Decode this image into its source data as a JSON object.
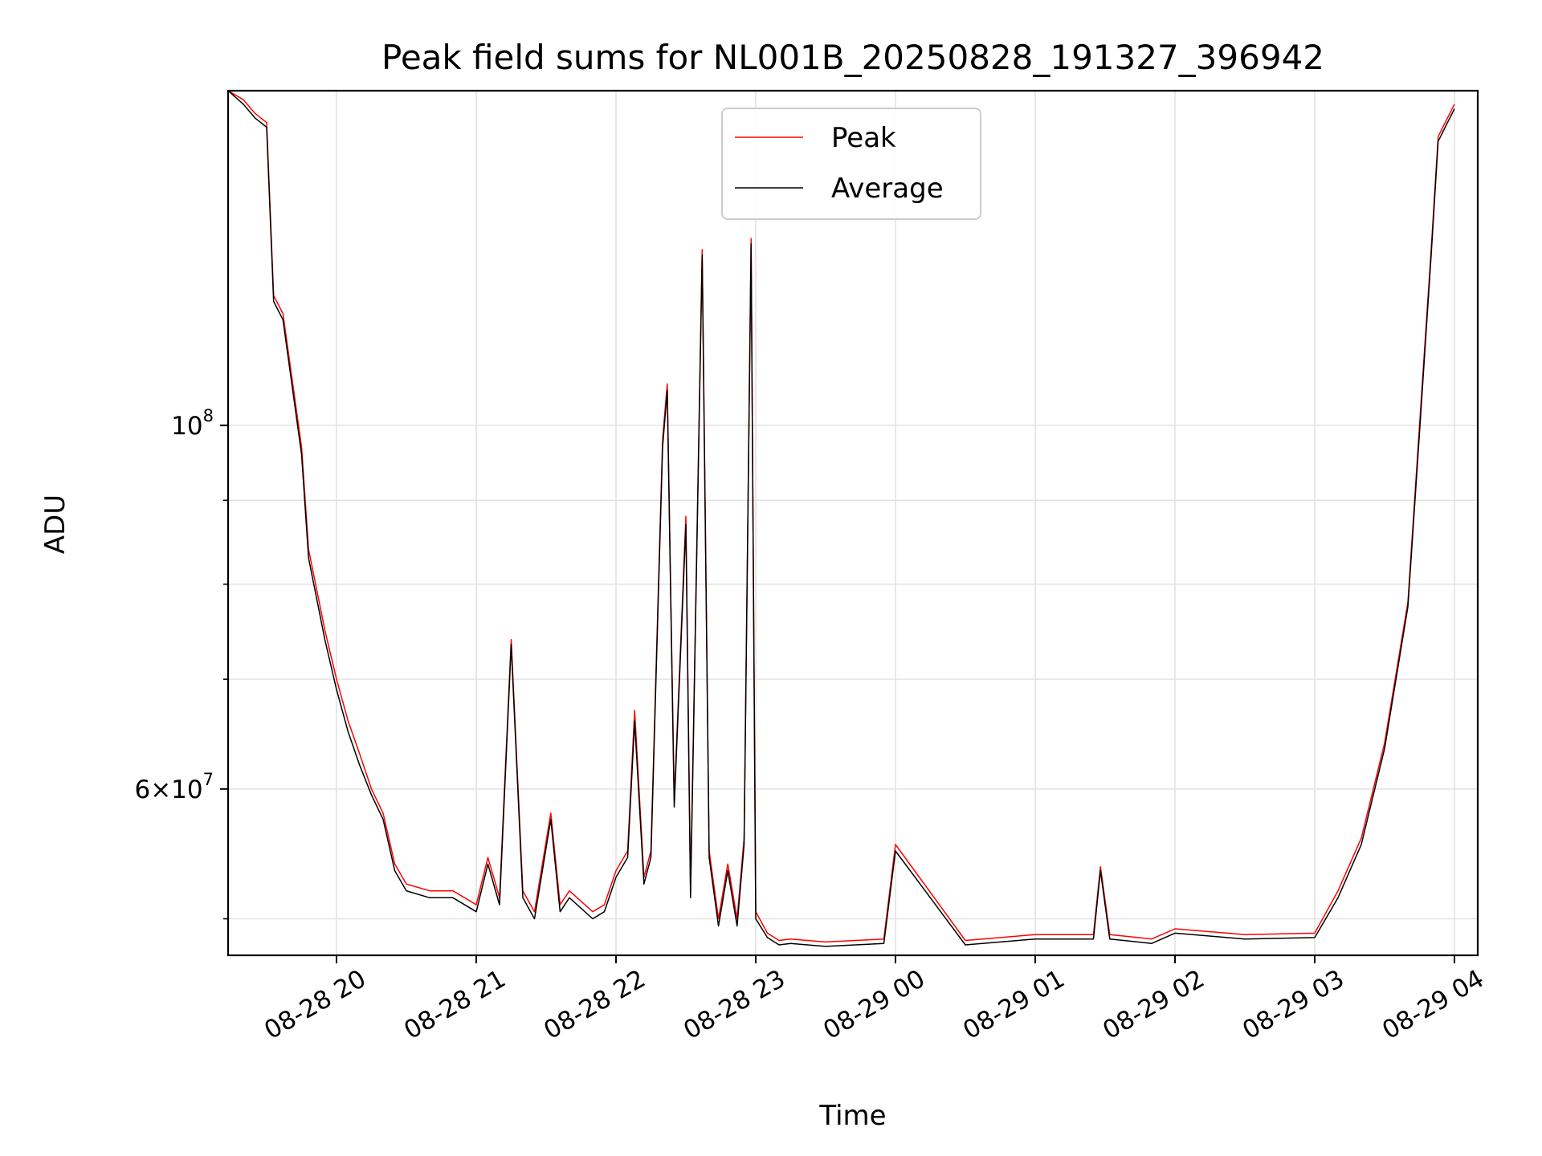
{
  "chart_data": {
    "type": "line",
    "title": "Peak field sums for NL001B_20250828_191327_396942",
    "xlabel": "Time",
    "ylabel": "ADU",
    "yscale": "log",
    "ylim": [
      47500000,
      160000000
    ],
    "xlim": [
      "2025-08-28T19:13:27",
      "2025-08-29T04:00:00"
    ],
    "grid": true,
    "legend_position": "top-center",
    "x_ticks": [
      {
        "value": "2025-08-28T20:00:00",
        "label": "08-28 20"
      },
      {
        "value": "2025-08-28T21:00:00",
        "label": "08-28 21"
      },
      {
        "value": "2025-08-28T22:00:00",
        "label": "08-28 22"
      },
      {
        "value": "2025-08-28T23:00:00",
        "label": "08-28 23"
      },
      {
        "value": "2025-08-29T00:00:00",
        "label": "08-29 00"
      },
      {
        "value": "2025-08-29T01:00:00",
        "label": "08-29 01"
      },
      {
        "value": "2025-08-29T02:00:00",
        "label": "08-29 02"
      },
      {
        "value": "2025-08-29T03:00:00",
        "label": "08-29 03"
      },
      {
        "value": "2025-08-29T04:00:00",
        "label": "08-29 04"
      }
    ],
    "y_major_ticks": [
      {
        "value": 60000000,
        "mantissa": "6",
        "exponent": "7"
      },
      {
        "value": 100000000,
        "mantissa": "",
        "exponent": "8"
      }
    ],
    "y_minor_ticks": [
      50000000,
      70000000,
      80000000,
      90000000
    ],
    "series": [
      {
        "name": "Peak",
        "color": "#ff0000",
        "x": [
          "2025-08-28T19:13:27",
          "2025-08-28T19:20:00",
          "2025-08-28T19:25:00",
          "2025-08-28T19:30:00",
          "2025-08-28T19:33:00",
          "2025-08-28T19:37:00",
          "2025-08-28T19:45:00",
          "2025-08-28T19:48:00",
          "2025-08-28T19:55:00",
          "2025-08-28T20:00:00",
          "2025-08-28T20:05:00",
          "2025-08-28T20:10:00",
          "2025-08-28T20:15:00",
          "2025-08-28T20:20:00",
          "2025-08-28T20:25:00",
          "2025-08-28T20:30:00",
          "2025-08-28T20:40:00",
          "2025-08-28T20:50:00",
          "2025-08-28T21:00:00",
          "2025-08-28T21:05:00",
          "2025-08-28T21:10:00",
          "2025-08-28T21:15:00",
          "2025-08-28T21:20:00",
          "2025-08-28T21:25:00",
          "2025-08-28T21:32:00",
          "2025-08-28T21:36:00",
          "2025-08-28T21:40:00",
          "2025-08-28T21:50:00",
          "2025-08-28T21:55:00",
          "2025-08-28T22:00:00",
          "2025-08-28T22:05:00",
          "2025-08-28T22:08:00",
          "2025-08-28T22:12:00",
          "2025-08-28T22:15:00",
          "2025-08-28T22:20:00",
          "2025-08-28T22:22:00",
          "2025-08-28T22:25:00",
          "2025-08-28T22:30:00",
          "2025-08-28T22:32:00",
          "2025-08-28T22:37:00",
          "2025-08-28T22:40:00",
          "2025-08-28T22:44:00",
          "2025-08-28T22:48:00",
          "2025-08-28T22:52:00",
          "2025-08-28T22:55:00",
          "2025-08-28T22:58:00",
          "2025-08-28T23:00:00",
          "2025-08-28T23:05:00",
          "2025-08-28T23:10:00",
          "2025-08-28T23:15:00",
          "2025-08-28T23:30:00",
          "2025-08-28T23:55:00",
          "2025-08-29T00:00:00",
          "2025-08-29T00:30:00",
          "2025-08-29T01:00:00",
          "2025-08-29T01:25:00",
          "2025-08-29T01:28:00",
          "2025-08-29T01:32:00",
          "2025-08-29T01:50:00",
          "2025-08-29T02:00:00",
          "2025-08-29T02:30:00",
          "2025-08-29T03:00:00",
          "2025-08-29T03:10:00",
          "2025-08-29T03:20:00",
          "2025-08-29T03:30:00",
          "2025-08-29T03:40:00",
          "2025-08-29T03:45:00",
          "2025-08-29T03:50:00",
          "2025-08-29T03:53:00",
          "2025-08-29T03:55:00",
          "2025-08-29T04:00:00"
        ],
        "y": [
          160000000,
          158000000,
          155000000,
          153000000,
          120000000,
          117000000,
          97000000,
          84000000,
          75000000,
          70000000,
          66000000,
          63000000,
          60000000,
          58000000,
          54000000,
          52500000,
          52000000,
          52000000,
          51000000,
          54500000,
          51500000,
          74000000,
          52000000,
          50500000,
          58000000,
          51000000,
          52000000,
          50500000,
          51000000,
          53500000,
          55000000,
          67000000,
          53000000,
          55000000,
          98000000,
          106000000,
          59000000,
          88000000,
          52000000,
          128000000,
          55000000,
          50000000,
          54000000,
          50000000,
          56000000,
          130000000,
          50500000,
          49000000,
          48500000,
          48600000,
          48400000,
          48600000,
          55500000,
          48500000,
          48900000,
          48900000,
          53800000,
          48900000,
          48600000,
          49300000,
          48900000,
          49000000,
          52000000,
          56000000,
          64000000,
          78000000,
          100000000,
          128000000,
          150000000,
          152000000,
          157000000
        ]
      },
      {
        "name": "Average",
        "color": "#000000",
        "x": [
          "2025-08-28T19:13:27",
          "2025-08-28T19:20:00",
          "2025-08-28T19:25:00",
          "2025-08-28T19:30:00",
          "2025-08-28T19:33:00",
          "2025-08-28T19:37:00",
          "2025-08-28T19:45:00",
          "2025-08-28T19:48:00",
          "2025-08-28T19:55:00",
          "2025-08-28T20:00:00",
          "2025-08-28T20:05:00",
          "2025-08-28T20:10:00",
          "2025-08-28T20:15:00",
          "2025-08-28T20:20:00",
          "2025-08-28T20:25:00",
          "2025-08-28T20:30:00",
          "2025-08-28T20:40:00",
          "2025-08-28T20:50:00",
          "2025-08-28T21:00:00",
          "2025-08-28T21:05:00",
          "2025-08-28T21:10:00",
          "2025-08-28T21:15:00",
          "2025-08-28T21:20:00",
          "2025-08-28T21:25:00",
          "2025-08-28T21:32:00",
          "2025-08-28T21:36:00",
          "2025-08-28T21:40:00",
          "2025-08-28T21:50:00",
          "2025-08-28T21:55:00",
          "2025-08-28T22:00:00",
          "2025-08-28T22:05:00",
          "2025-08-28T22:08:00",
          "2025-08-28T22:12:00",
          "2025-08-28T22:15:00",
          "2025-08-28T22:20:00",
          "2025-08-28T22:22:00",
          "2025-08-28T22:25:00",
          "2025-08-28T22:30:00",
          "2025-08-28T22:32:00",
          "2025-08-28T22:37:00",
          "2025-08-28T22:40:00",
          "2025-08-28T22:44:00",
          "2025-08-28T22:48:00",
          "2025-08-28T22:52:00",
          "2025-08-28T22:55:00",
          "2025-08-28T22:58:00",
          "2025-08-28T23:00:00",
          "2025-08-28T23:05:00",
          "2025-08-28T23:10:00",
          "2025-08-28T23:15:00",
          "2025-08-28T23:30:00",
          "2025-08-28T23:55:00",
          "2025-08-29T00:00:00",
          "2025-08-29T00:30:00",
          "2025-08-29T01:00:00",
          "2025-08-29T01:25:00",
          "2025-08-29T01:28:00",
          "2025-08-29T01:32:00",
          "2025-08-29T01:50:00",
          "2025-08-29T02:00:00",
          "2025-08-29T02:30:00",
          "2025-08-29T03:00:00",
          "2025-08-29T03:10:00",
          "2025-08-29T03:20:00",
          "2025-08-29T03:30:00",
          "2025-08-29T03:40:00",
          "2025-08-29T03:45:00",
          "2025-08-29T03:50:00",
          "2025-08-29T03:53:00",
          "2025-08-29T03:55:00",
          "2025-08-29T04:00:00"
        ],
        "y": [
          160000000,
          157000000,
          154000000,
          152000000,
          119000000,
          116000000,
          96000000,
          83000000,
          74000000,
          69000000,
          65000000,
          62000000,
          59500000,
          57500000,
          53500000,
          52000000,
          51500000,
          51500000,
          50500000,
          54000000,
          51000000,
          73500000,
          51500000,
          50000000,
          57500000,
          50500000,
          51500000,
          50000000,
          50500000,
          53000000,
          54500000,
          66000000,
          52500000,
          54500000,
          97000000,
          105000000,
          58500000,
          87000000,
          51500000,
          127000000,
          54500000,
          49500000,
          53500000,
          49500000,
          55500000,
          129000000,
          50000000,
          48700000,
          48200000,
          48300000,
          48100000,
          48300000,
          55000000,
          48200000,
          48600000,
          48600000,
          53500000,
          48600000,
          48300000,
          49000000,
          48600000,
          48700000,
          51500000,
          55500000,
          63500000,
          77500000,
          99000000,
          127000000,
          149000000,
          151000000,
          156000000
        ]
      }
    ]
  }
}
